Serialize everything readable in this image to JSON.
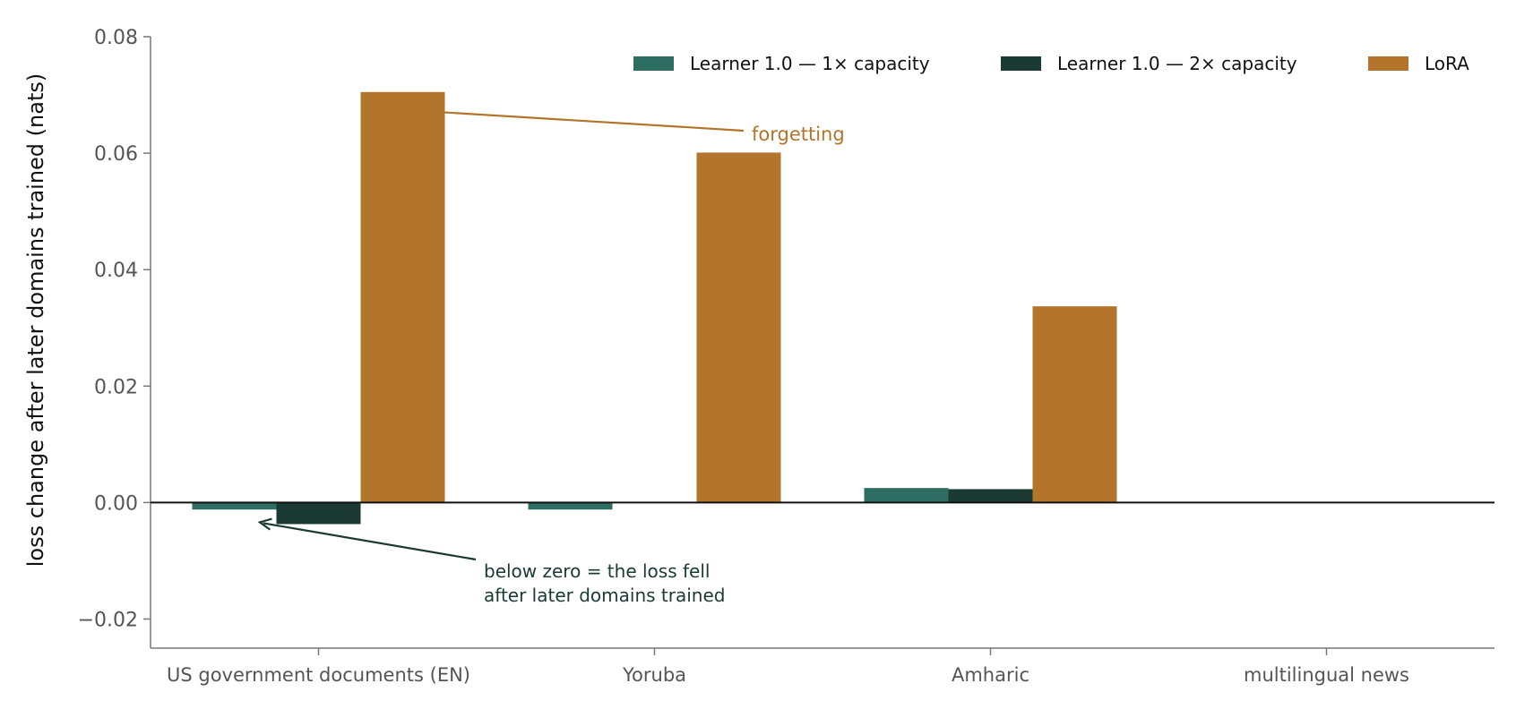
{
  "chart_data": {
    "type": "bar",
    "categories": [
      "US government documents (EN)",
      "Yoruba",
      "Amharic",
      "multilingual news"
    ],
    "series": [
      {
        "name": "Learner 1.0 — 1× capacity",
        "values": [
          -0.0012,
          -0.0012,
          0.0025,
          0
        ],
        "color": "#2e6e62"
      },
      {
        "name": "Learner 1.0 — 2× capacity",
        "values": [
          -0.0037,
          0,
          0.0023,
          0
        ],
        "color": "#1a3a33"
      },
      {
        "name": "LoRA",
        "values": [
          0.0705,
          0.0601,
          0.0337,
          0
        ],
        "color": "#b2752b"
      }
    ],
    "ylabel": "loss change after later domains trained (nats)",
    "ylim": [
      -0.025,
      0.08
    ],
    "yticks": [
      -0.02,
      0.0,
      0.02,
      0.04,
      0.06,
      0.08
    ],
    "ytick_labels": [
      "−0.02",
      "0.00",
      "0.02",
      "0.04",
      "0.06",
      "0.08"
    ],
    "grid": false,
    "legend_position": "top-right",
    "annotations": [
      {
        "id": "forgetting",
        "lines": [
          "forgetting"
        ],
        "color": "#b2752b",
        "category": 0,
        "series": 2,
        "value": 0.067
      },
      {
        "id": "below-zero",
        "lines": [
          "below zero = the loss fell",
          "after later domains trained"
        ],
        "color": "#1a3a33",
        "category": 0,
        "value": -0.0037
      }
    ]
  }
}
